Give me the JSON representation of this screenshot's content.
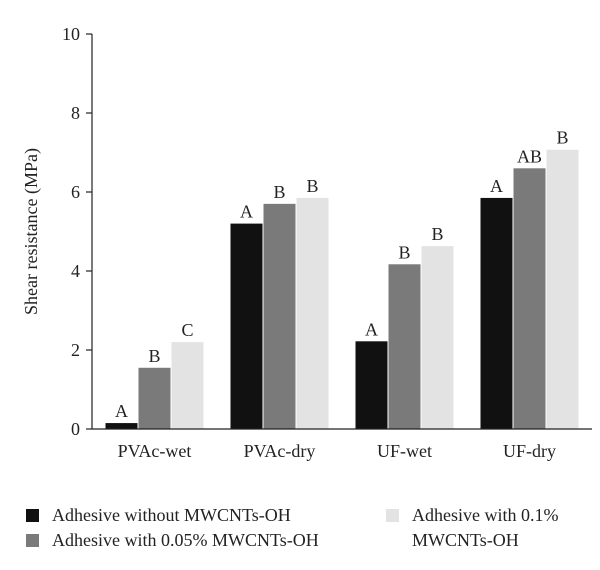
{
  "chart_data": {
    "type": "bar",
    "ylabel": "Shear resistance (MPa)",
    "xlabel": "",
    "title": "",
    "ylim": [
      0,
      10
    ],
    "yticks": [
      "0",
      "2",
      "4",
      "6",
      "8",
      "10"
    ],
    "categories": [
      "PVAc-wet",
      "PVAc-dry",
      "UF-wet",
      "UF-dry"
    ],
    "series": [
      {
        "name": "Adhesive without MWCNTs-OH",
        "color": "#111111",
        "values": [
          0.15,
          5.2,
          2.22,
          5.85
        ],
        "labels": [
          "A",
          "A",
          "A",
          "A"
        ]
      },
      {
        "name": "Adhesive with 0.05% MWCNTs-OH",
        "color": "#7a7a7a",
        "values": [
          1.55,
          5.7,
          4.17,
          6.6
        ],
        "labels": [
          "B",
          "B",
          "B",
          "AB"
        ]
      },
      {
        "name": "Adhesive with 0.1% MWCNTs-OH",
        "color": "#e3e3e3",
        "values": [
          2.2,
          5.85,
          4.63,
          7.07
        ],
        "labels": [
          "C",
          "B",
          "B",
          "B"
        ]
      }
    ],
    "grid": false,
    "legend_position": "bottom"
  },
  "legend": {
    "item1": "Adhesive without MWCNTs-OH",
    "item2": "Adhesive with 0.05% MWCNTs-OH",
    "item3_line1": "Adhesive with 0.1%",
    "item3_line2": "MWCNTs-OH"
  }
}
